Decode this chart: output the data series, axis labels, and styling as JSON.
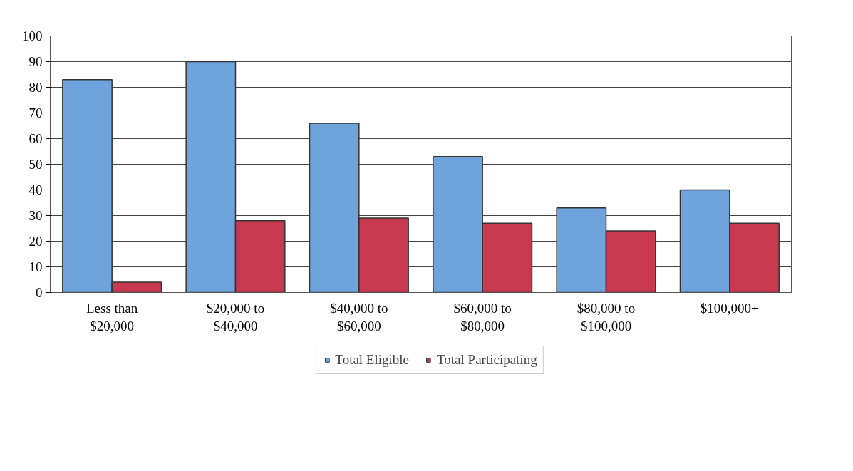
{
  "chart_data": {
    "type": "bar",
    "categories": [
      "Less than $20,000",
      "$20,000 to $40,000",
      "$40,000 to $60,000",
      "$60,000 to $80,000",
      "$80,000 to $100,000",
      "$100,000+"
    ],
    "series": [
      {
        "name": "Total Eligible",
        "color": "#6fa3dc",
        "values": [
          83,
          90,
          66,
          53,
          33,
          40
        ]
      },
      {
        "name": "Total Participating",
        "color": "#c8384f",
        "values": [
          4,
          28,
          29,
          27,
          24,
          27
        ]
      }
    ],
    "ylim": [
      0,
      100
    ],
    "yticks": [
      0,
      10,
      20,
      30,
      40,
      50,
      60,
      70,
      80,
      90,
      100
    ],
    "grid": "y",
    "legend": "bottom"
  }
}
